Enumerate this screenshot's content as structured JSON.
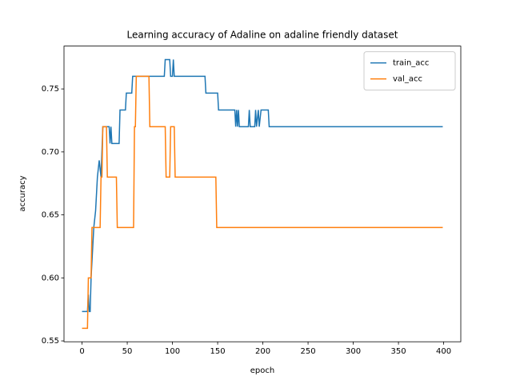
{
  "chart_data": {
    "type": "line",
    "title": "Learning accuracy of Adaline on adaline friendly dataset",
    "xlabel": "epoch",
    "ylabel": "accuracy",
    "xlim": [
      -19.95,
      418.95
    ],
    "ylim": [
      0.5493,
      0.784
    ],
    "xticks": [
      0,
      50,
      100,
      150,
      200,
      250,
      300,
      350,
      400
    ],
    "yticks": [
      0.55,
      {
        "value": 0.6,
        "label": "0.60"
      },
      0.65,
      {
        "value": 0.7,
        "label": "0.70"
      },
      0.75
    ],
    "legend": "upper right",
    "series": [
      {
        "name": "train_acc",
        "color": "#1f77b4",
        "x": [
          0,
          6,
          7,
          8,
          9,
          10,
          12,
          13,
          15,
          17,
          19,
          21,
          23,
          30,
          31,
          32,
          33,
          41,
          42,
          48,
          49,
          55,
          56,
          91,
          92,
          97,
          98,
          100,
          101,
          102,
          136,
          137,
          150,
          151,
          169,
          170,
          171,
          172,
          173,
          174,
          184,
          185,
          186,
          191,
          192,
          193,
          195,
          196,
          198,
          206,
          207,
          399
        ],
        "values": [
          0.5733,
          0.5733,
          0.5867,
          0.5733,
          0.5733,
          0.6,
          0.6267,
          0.64,
          0.6533,
          0.68,
          0.6933,
          0.68,
          0.72,
          0.72,
          0.7067,
          0.72,
          0.7067,
          0.7067,
          0.7333,
          0.7333,
          0.7467,
          0.7467,
          0.76,
          0.76,
          0.7733,
          0.7733,
          0.76,
          0.76,
          0.7733,
          0.76,
          0.76,
          0.7467,
          0.7467,
          0.7333,
          0.7333,
          0.72,
          0.7333,
          0.72,
          0.7333,
          0.72,
          0.72,
          0.7333,
          0.72,
          0.72,
          0.7333,
          0.72,
          0.7333,
          0.72,
          0.7333,
          0.7333,
          0.72,
          0.72
        ]
      },
      {
        "name": "val_acc",
        "color": "#ff7f0e",
        "x": [
          0,
          6,
          7,
          10,
          11,
          20,
          21,
          22,
          23,
          27,
          28,
          38,
          39,
          57,
          58,
          59,
          60,
          74,
          75,
          92,
          93,
          97,
          98,
          102,
          103,
          148,
          149,
          399
        ],
        "values": [
          0.56,
          0.56,
          0.6,
          0.6,
          0.64,
          0.64,
          0.68,
          0.68,
          0.72,
          0.72,
          0.68,
          0.68,
          0.64,
          0.64,
          0.72,
          0.72,
          0.76,
          0.76,
          0.72,
          0.72,
          0.68,
          0.68,
          0.72,
          0.72,
          0.68,
          0.68,
          0.64,
          0.64
        ]
      }
    ]
  }
}
